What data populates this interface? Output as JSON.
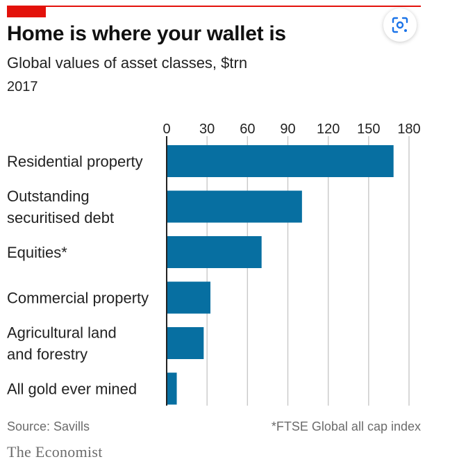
{
  "header": {
    "title": "Home is where your wallet is",
    "subtitle": "Global values of asset classes, $trn",
    "year": "2017"
  },
  "footer": {
    "source": "Source: Savills",
    "footnote": "*FTSE Global all cap index",
    "brand": "The Economist"
  },
  "lens_button": {
    "icon": "lens-search-icon"
  },
  "colors": {
    "accent": "#e3120b",
    "bar": "#076fa1",
    "gridline": "#c8c8c8",
    "baseline": "#222222"
  },
  "chart_data": {
    "type": "bar",
    "orientation": "horizontal",
    "title": "Home is where your wallet is",
    "subtitle": "Global values of asset classes, $trn",
    "xlim": [
      0,
      180
    ],
    "xticks": [
      0,
      30,
      60,
      90,
      120,
      150,
      180
    ],
    "grid": true,
    "categories": [
      [
        "Residential property"
      ],
      [
        "Outstanding",
        "securitised debt"
      ],
      [
        "Equities*"
      ],
      [
        "Commercial property"
      ],
      [
        "Agricultural land",
        "and forestry"
      ],
      [
        "All gold ever mined"
      ]
    ],
    "values": [
      168.5,
      100.5,
      70.5,
      32.5,
      27.5,
      7.5
    ]
  }
}
